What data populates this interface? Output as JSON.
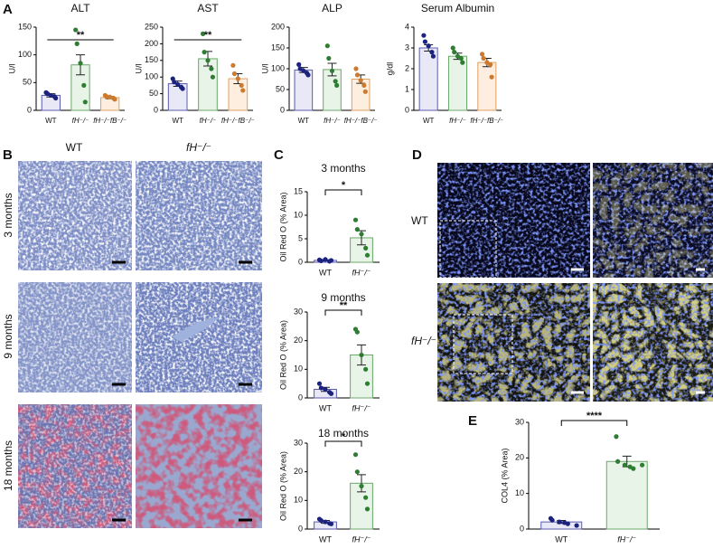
{
  "panel_labels": [
    "A",
    "B",
    "C",
    "D",
    "E"
  ],
  "histology": {
    "columns": [
      "WT",
      "fH⁻/⁻"
    ],
    "rows": [
      "3 months",
      "9 months",
      "18 months"
    ]
  },
  "immunofluorescence": {
    "rows": [
      "WT",
      "fH⁻/⁻"
    ]
  },
  "chart_data": [
    {
      "type": "bar",
      "title": "ALT",
      "ylabel": "U/l",
      "categories": [
        "WT",
        "fH⁻/⁻",
        "fH⁻/⁻fB⁻/⁻"
      ],
      "values": [
        27,
        82,
        23
      ],
      "errors": [
        3,
        18,
        2
      ],
      "points": [
        [
          32,
          30,
          27,
          25,
          22
        ],
        [
          145,
          120,
          85,
          45,
          15
        ],
        [
          27,
          25,
          24,
          22,
          20
        ]
      ],
      "colors": [
        "#1b237e",
        "#2e7d32",
        "#cc7a2e"
      ],
      "fills": [
        "#e8e8f6",
        "#e8f4e8",
        "#fdeedf"
      ],
      "edges": [
        "#5b5bb0",
        "#6aa86a",
        "#e0a060"
      ],
      "ylim": [
        0,
        150
      ],
      "yticks": [
        0,
        50,
        100,
        150
      ],
      "significance": {
        "label": "**",
        "between": [
          "WT",
          "fH⁻/⁻fB⁻/⁻"
        ]
      }
    },
    {
      "type": "bar",
      "title": "AST",
      "ylabel": "U/l",
      "categories": [
        "WT",
        "fH⁻/⁻",
        "fH⁻/⁻fB⁻/⁻"
      ],
      "values": [
        80,
        155,
        95
      ],
      "errors": [
        8,
        22,
        15
      ],
      "points": [
        [
          95,
          85,
          78,
          70,
          65
        ],
        [
          230,
          175,
          150,
          125,
          100
        ],
        [
          135,
          110,
          95,
          75,
          60
        ]
      ],
      "colors": [
        "#1b237e",
        "#2e7d32",
        "#cc7a2e"
      ],
      "fills": [
        "#e8e8f6",
        "#e8f4e8",
        "#fdeedf"
      ],
      "edges": [
        "#5b5bb0",
        "#6aa86a",
        "#e0a060"
      ],
      "ylim": [
        0,
        250
      ],
      "yticks": [
        0,
        50,
        100,
        150,
        200,
        250
      ],
      "significance": {
        "label": "**",
        "between": [
          "WT",
          "fH⁻/⁻fB⁻/⁻"
        ]
      }
    },
    {
      "type": "bar",
      "title": "ALP",
      "ylabel": "U/l",
      "categories": [
        "WT",
        "fH⁻/⁻",
        "fH⁻/⁻fB⁻/⁻"
      ],
      "values": [
        97,
        98,
        75
      ],
      "errors": [
        6,
        15,
        10
      ],
      "points": [
        [
          110,
          100,
          95,
          90,
          85
        ],
        [
          155,
          125,
          95,
          70,
          60
        ],
        [
          100,
          85,
          72,
          60,
          45
        ]
      ],
      "colors": [
        "#1b237e",
        "#2e7d32",
        "#cc7a2e"
      ],
      "fills": [
        "#e8e8f6",
        "#e8f4e8",
        "#fdeedf"
      ],
      "edges": [
        "#5b5bb0",
        "#6aa86a",
        "#e0a060"
      ],
      "ylim": [
        0,
        200
      ],
      "yticks": [
        0,
        50,
        100,
        150,
        200
      ]
    },
    {
      "type": "bar",
      "title": "Serum Albumin",
      "ylabel": "g/dl",
      "categories": [
        "WT",
        "fH⁻/⁻",
        "fH⁻/⁻fB⁻/⁻"
      ],
      "values": [
        3.0,
        2.6,
        2.3
      ],
      "errors": [
        0.15,
        0.15,
        0.2
      ],
      "points": [
        [
          3.6,
          3.3,
          3.1,
          2.8,
          2.6
        ],
        [
          3.0,
          2.8,
          2.6,
          2.5,
          2.3
        ],
        [
          2.7,
          2.5,
          2.3,
          2.2,
          1.6
        ]
      ],
      "colors": [
        "#1b237e",
        "#2e7d32",
        "#cc7a2e"
      ],
      "fills": [
        "#e8e8f6",
        "#e8f4e8",
        "#fdeedf"
      ],
      "edges": [
        "#5b5bb0",
        "#6aa86a",
        "#e0a060"
      ],
      "ylim": [
        0,
        4
      ],
      "yticks": [
        0,
        1,
        2,
        3,
        4
      ]
    },
    {
      "type": "bar",
      "title": "3 months",
      "ylabel": "Oil Red O (% Area)",
      "categories": [
        "WT",
        "fH⁻/⁻"
      ],
      "values": [
        0.4,
        5.2
      ],
      "errors": [
        0.1,
        1.5
      ],
      "points": [
        [
          0.5,
          0.3,
          0.6,
          0.2,
          0.4
        ],
        [
          9,
          7,
          6,
          3,
          1.5
        ]
      ],
      "colors": [
        "#1b237e",
        "#2e7d32"
      ],
      "fills": [
        "#e8e8f6",
        "#e8f4e8"
      ],
      "edges": [
        "#5b5bb0",
        "#6aa86a"
      ],
      "ylim": [
        0,
        15
      ],
      "yticks": [
        0,
        5,
        10,
        15
      ],
      "significance": {
        "label": "*",
        "between": [
          "WT",
          "fH⁻/⁻"
        ]
      }
    },
    {
      "type": "bar",
      "title": "9 months",
      "ylabel": "Oil Red O (% Area)",
      "categories": [
        "WT",
        "fH⁻/⁻"
      ],
      "values": [
        3,
        15
      ],
      "errors": [
        0.7,
        3.5
      ],
      "points": [
        [
          5,
          3.5,
          3,
          2,
          1.5
        ],
        [
          24,
          23,
          15,
          10,
          5
        ]
      ],
      "colors": [
        "#1b237e",
        "#2e7d32"
      ],
      "fills": [
        "#e8e8f6",
        "#e8f4e8"
      ],
      "edges": [
        "#5b5bb0",
        "#6aa86a"
      ],
      "ylim": [
        0,
        30
      ],
      "yticks": [
        0,
        10,
        20,
        30
      ],
      "significance": {
        "label": "**",
        "between": [
          "WT",
          "fH⁻/⁻"
        ]
      }
    },
    {
      "type": "bar",
      "title": "18 months",
      "ylabel": "Oil Red O (% Area)",
      "categories": [
        "WT",
        "fH⁻/⁻"
      ],
      "values": [
        2.5,
        16
      ],
      "errors": [
        0.5,
        3
      ],
      "points": [
        [
          3.5,
          3,
          2.5,
          2,
          1.8
        ],
        [
          26,
          20,
          15,
          11,
          7
        ]
      ],
      "colors": [
        "#1b237e",
        "#2e7d32"
      ],
      "fills": [
        "#e8e8f6",
        "#e8f4e8"
      ],
      "edges": [
        "#5b5bb0",
        "#6aa86a"
      ],
      "ylim": [
        0,
        30
      ],
      "yticks": [
        0,
        10,
        20,
        30
      ],
      "significance": {
        "label": "*",
        "between": [
          "WT",
          "fH⁻/⁻"
        ]
      }
    },
    {
      "type": "bar",
      "ylabel": "COL4 (% Area)",
      "categories": [
        "WT",
        "fH⁻/⁻"
      ],
      "values": [
        2,
        19
      ],
      "errors": [
        0.4,
        1.5
      ],
      "points": [
        [
          3,
          2.5,
          2,
          1.8,
          1.5,
          1
        ],
        [
          26,
          19,
          18,
          17.5,
          17,
          18
        ]
      ],
      "colors": [
        "#1b237e",
        "#2e7d32"
      ],
      "fills": [
        "#e8e8f6",
        "#e8f4e8"
      ],
      "edges": [
        "#5b5bb0",
        "#6aa86a"
      ],
      "ylim": [
        0,
        30
      ],
      "yticks": [
        0,
        10,
        20,
        30
      ],
      "significance": {
        "label": "****",
        "between": [
          "WT",
          "fH⁻/⁻"
        ]
      }
    }
  ]
}
